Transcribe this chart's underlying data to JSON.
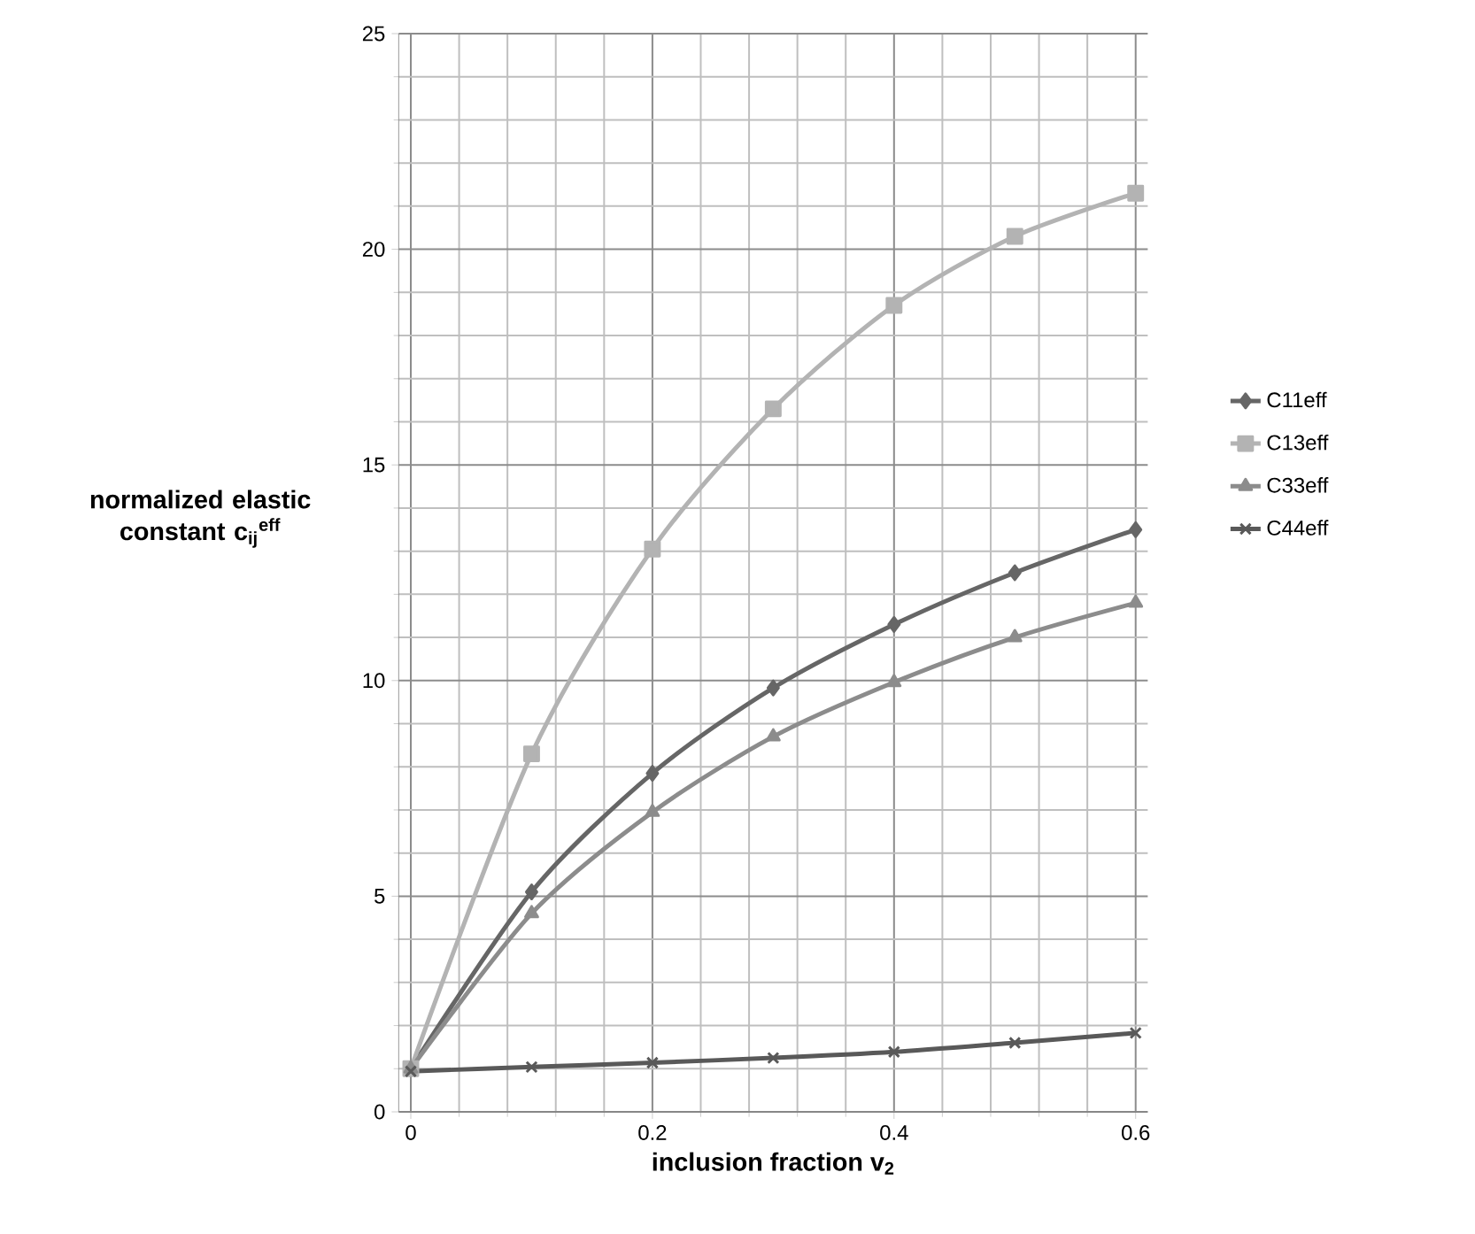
{
  "chart_data": {
    "type": "line",
    "xlabel": "inclusion fraction v$_{2}$",
    "ylabel": "normalized elastic constant c$_{ij}$$^{eff}$",
    "x": [
      0,
      0.1,
      0.2,
      0.3,
      0.4,
      0.5,
      0.6
    ],
    "series": [
      {
        "name": "C11eff",
        "color": "#666666",
        "marker": "diamond",
        "values": [
          1,
          5.1,
          7.85,
          9.83,
          11.3,
          12.5,
          13.5
        ]
      },
      {
        "name": "C13eff",
        "color": "#b3b3b3",
        "marker": "square",
        "values": [
          1,
          8.3,
          13.05,
          16.3,
          18.7,
          20.3,
          21.3
        ]
      },
      {
        "name": "C33eff",
        "color": "#8c8c8c",
        "marker": "triangle",
        "values": [
          1,
          4.6,
          6.95,
          8.7,
          9.96,
          11.0,
          11.8
        ]
      },
      {
        "name": "C44eff",
        "color": "#595959",
        "marker": "cross",
        "values": [
          0.94,
          1.04,
          1.14,
          1.25,
          1.39,
          1.6,
          1.83
        ]
      }
    ],
    "xlim": [
      -0.01,
      0.61
    ],
    "xticks": [
      0,
      0.2,
      0.4,
      0.6
    ],
    "ylim": [
      0,
      25
    ],
    "yticks": [
      0,
      5,
      10,
      15,
      20,
      25
    ],
    "grid": true,
    "legend": "right",
    "line_style": "solid"
  }
}
